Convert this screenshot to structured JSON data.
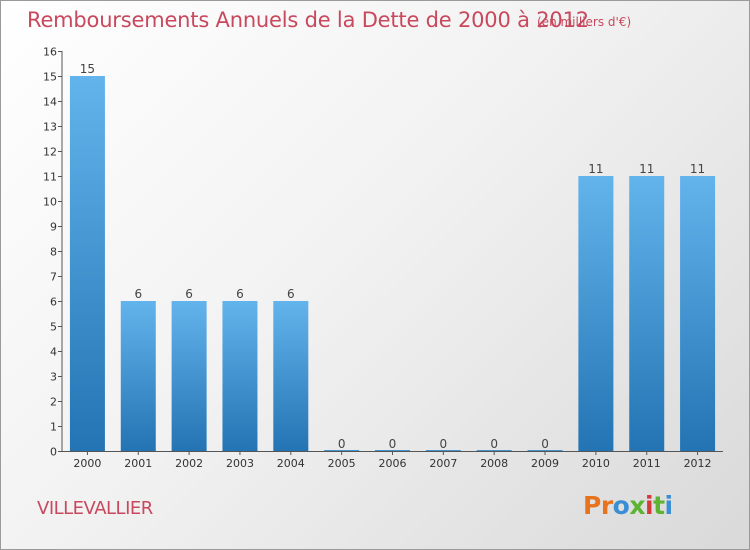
{
  "header": {
    "title": "Remboursements Annuels de la Dette de 2000 à 2012",
    "unit": "(en milliers d'€)"
  },
  "footer": {
    "commune": "VILLEVALLIER",
    "brand": [
      "P",
      "r",
      "o",
      "x",
      "i",
      "t",
      "i"
    ],
    "brand_colors": [
      "#e8731f",
      "#e8731f",
      "#3a8fd4",
      "#5cb432",
      "#d53a3a",
      "#5cb432",
      "#3a8fd4"
    ]
  },
  "colors": {
    "bar_light": "#63b3ec",
    "bar_dark": "#2474b4",
    "title": "#c8485d",
    "axis_text": "#333333"
  },
  "chart_data": {
    "type": "bar",
    "title": "Remboursements Annuels de la Dette de 2000 à 2012",
    "unit": "(en milliers d'€)",
    "categories": [
      "2000",
      "2001",
      "2002",
      "2003",
      "2004",
      "2005",
      "2006",
      "2007",
      "2008",
      "2009",
      "2010",
      "2011",
      "2012"
    ],
    "values": [
      15,
      6,
      6,
      6,
      6,
      0,
      0,
      0,
      0,
      0,
      11,
      11,
      11
    ],
    "ylim": [
      0,
      16
    ],
    "yticks": [
      0,
      1,
      2,
      3,
      4,
      5,
      6,
      7,
      8,
      9,
      10,
      11,
      12,
      13,
      14,
      15,
      16
    ],
    "grid": false,
    "legend": "none"
  }
}
